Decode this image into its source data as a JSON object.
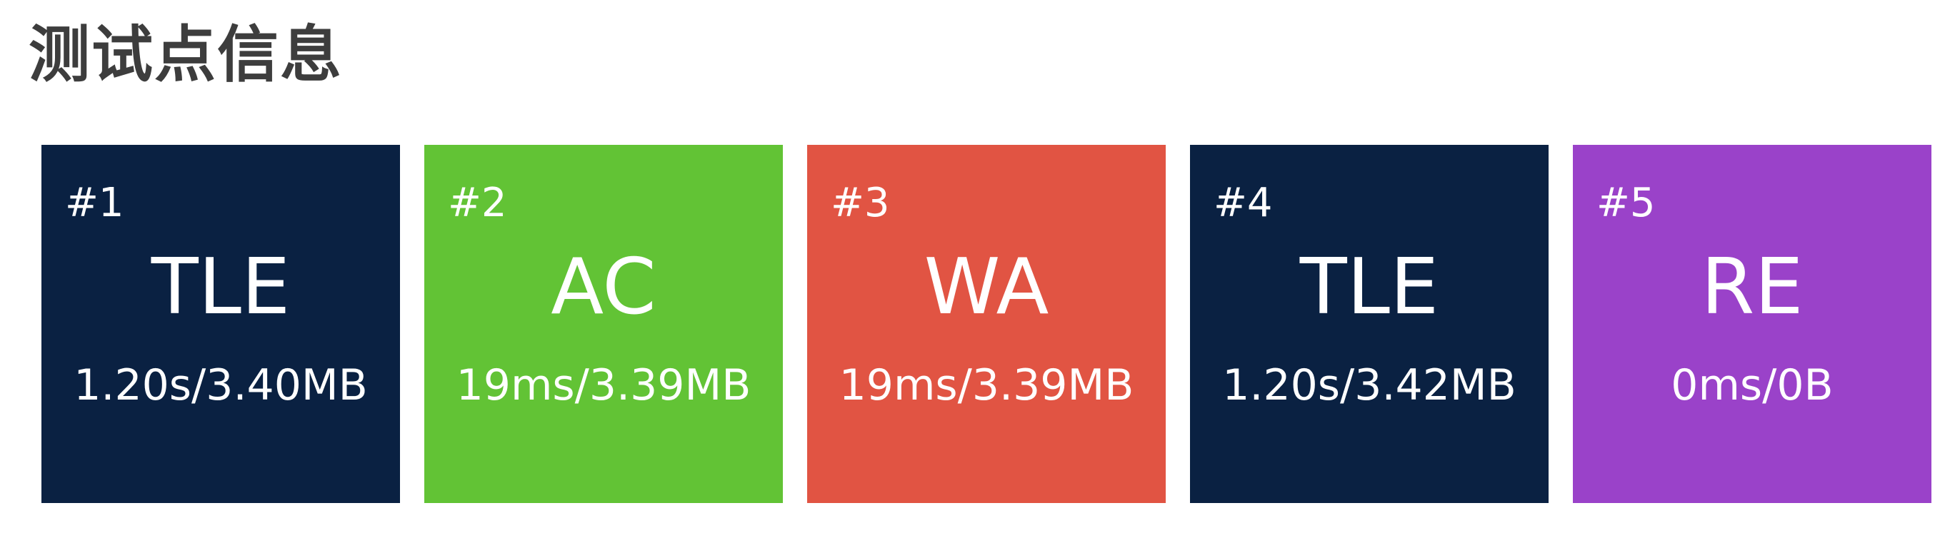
{
  "header": {
    "title": "测试点信息"
  },
  "colors": {
    "TLE": "#0a2142",
    "AC": "#62c335",
    "WA": "#e15443",
    "RE": "#9a42c9"
  },
  "cases": [
    {
      "number": "#1",
      "status": "TLE",
      "usage": "1.20s/3.40MB"
    },
    {
      "number": "#2",
      "status": "AC",
      "usage": "19ms/3.39MB"
    },
    {
      "number": "#3",
      "status": "WA",
      "usage": "19ms/3.39MB"
    },
    {
      "number": "#4",
      "status": "TLE",
      "usage": "1.20s/3.42MB"
    },
    {
      "number": "#5",
      "status": "RE",
      "usage": "0ms/0B"
    }
  ]
}
